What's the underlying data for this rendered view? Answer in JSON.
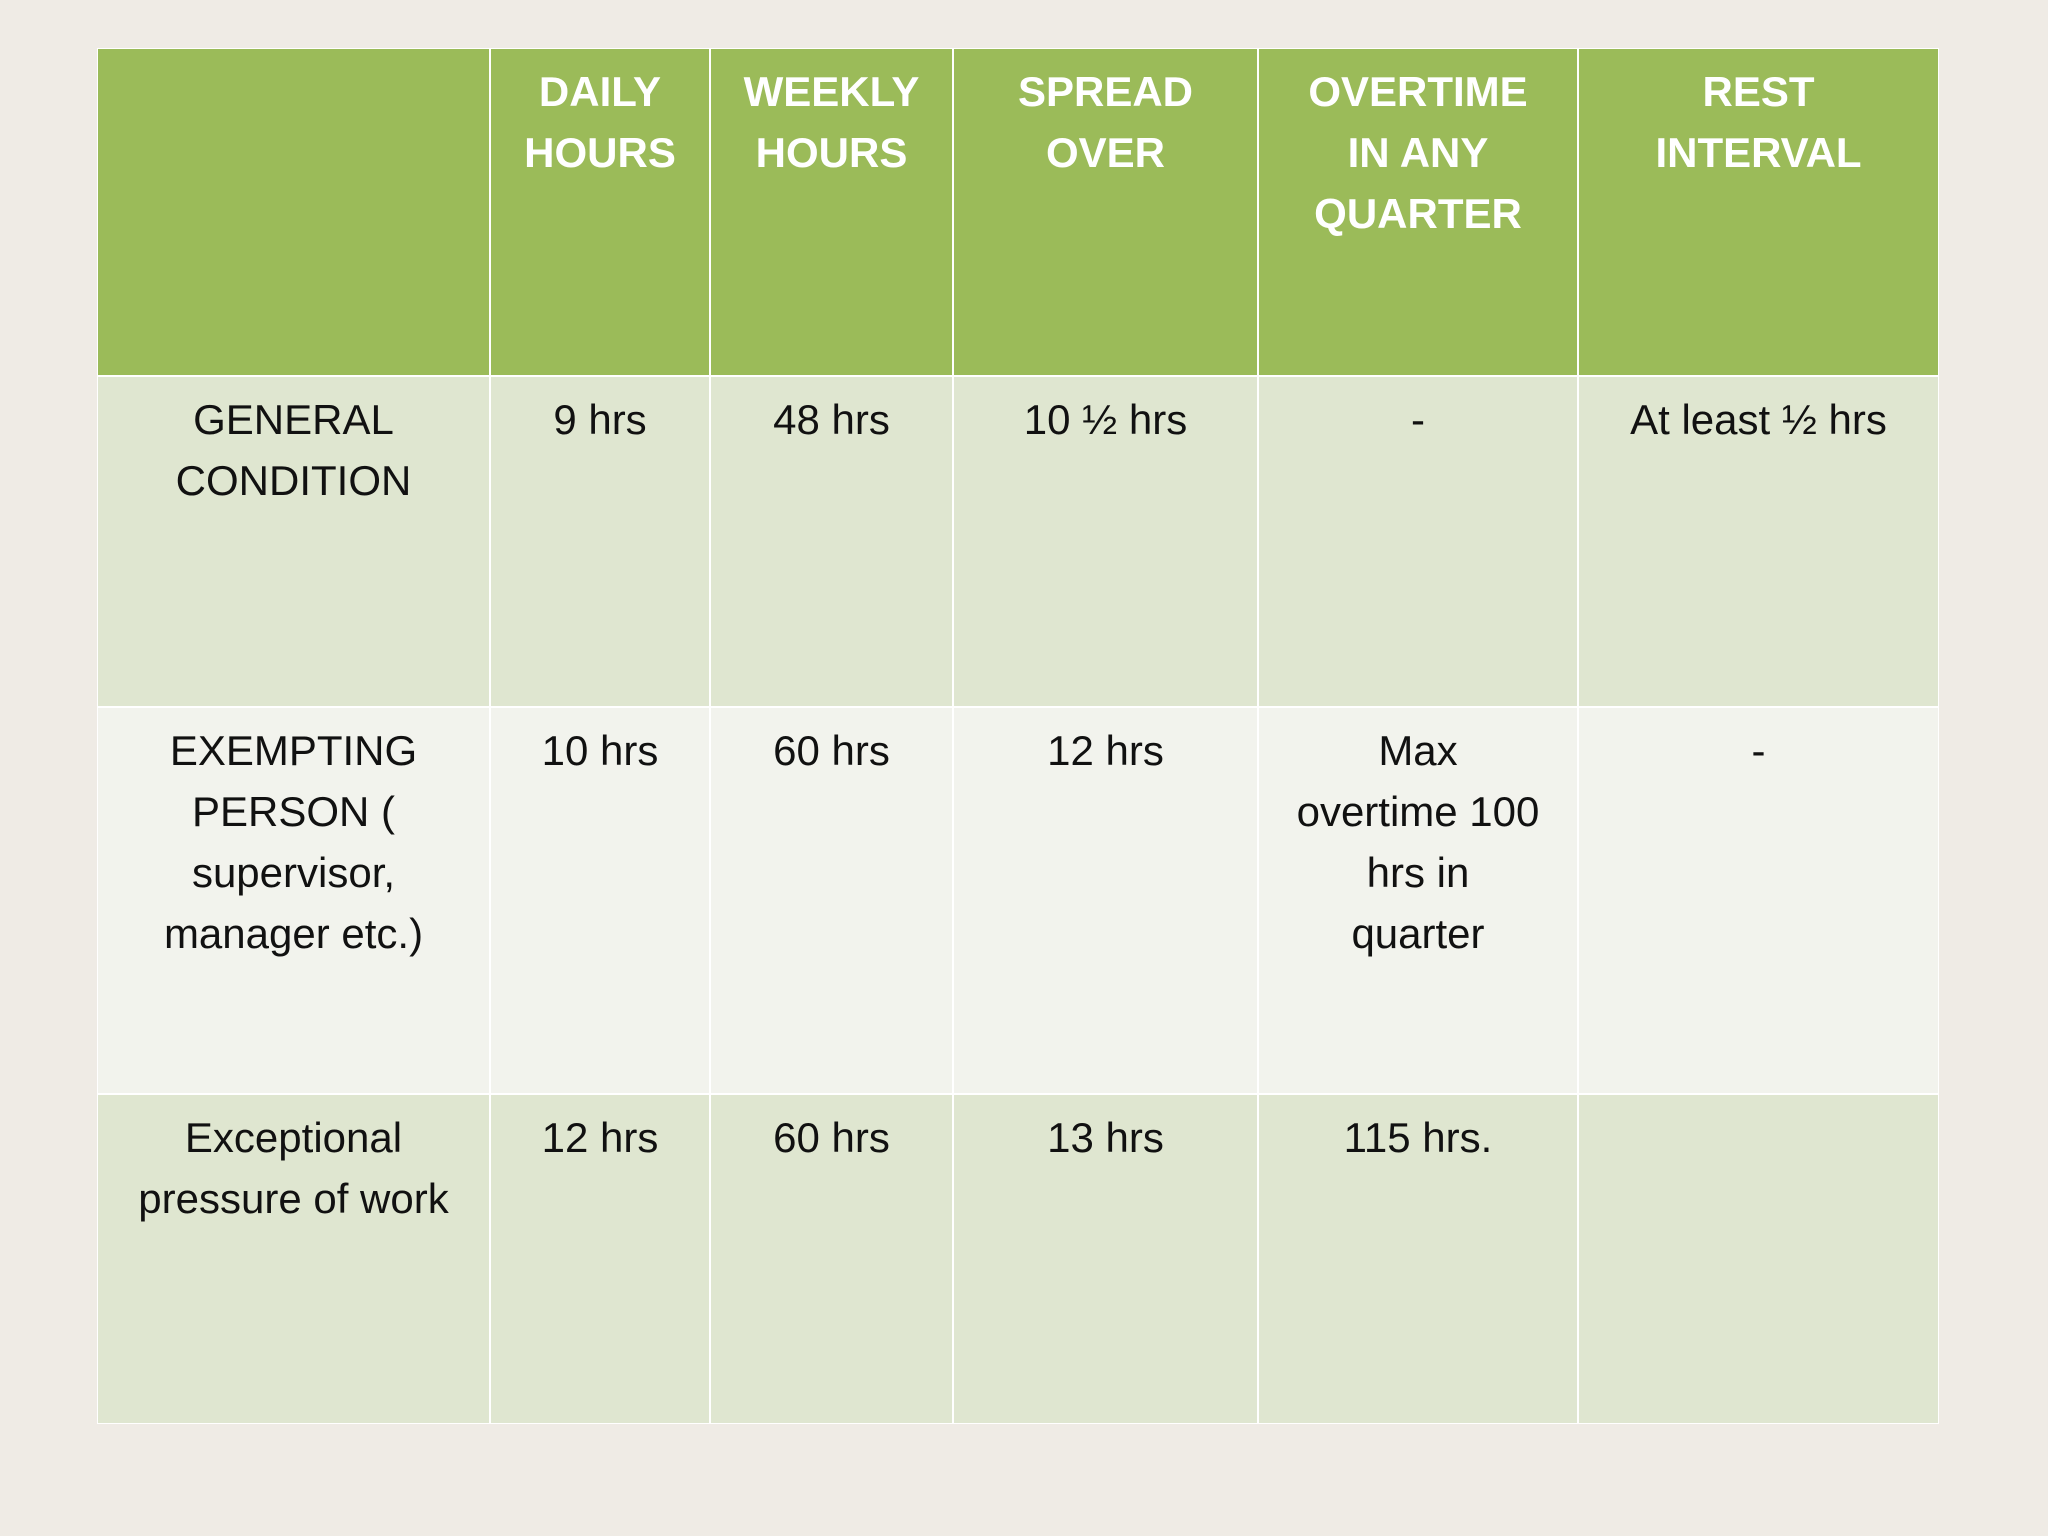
{
  "table": {
    "header": [
      [
        "DAILY",
        "HOURS"
      ],
      [
        "WEEKLY",
        "HOURS"
      ],
      [
        "SPREAD",
        "OVER"
      ],
      [
        "OVERTIME",
        "IN ANY",
        "QUARTER"
      ],
      [
        "REST",
        "INTERVAL"
      ]
    ],
    "rows": [
      [
        [
          "GENERAL",
          "CONDITION"
        ],
        [
          "9 hrs"
        ],
        [
          "48 hrs"
        ],
        [
          "10 ½ hrs"
        ],
        [
          "-"
        ],
        [
          "At least  ½ hrs"
        ]
      ],
      [
        [
          "EXEMPTING",
          "PERSON (",
          "supervisor,",
          "manager etc.)"
        ],
        [
          "10 hrs"
        ],
        [
          "60 hrs"
        ],
        [
          "12 hrs"
        ],
        [
          "Max",
          "overtime 100",
          "hrs in",
          "quarter"
        ],
        [
          "-"
        ]
      ],
      [
        [
          "Exceptional",
          "pressure of work"
        ],
        [
          "12 hrs"
        ],
        [
          "60 hrs"
        ],
        [
          "13 hrs"
        ],
        [
          "115 hrs."
        ]
      ]
    ]
  }
}
